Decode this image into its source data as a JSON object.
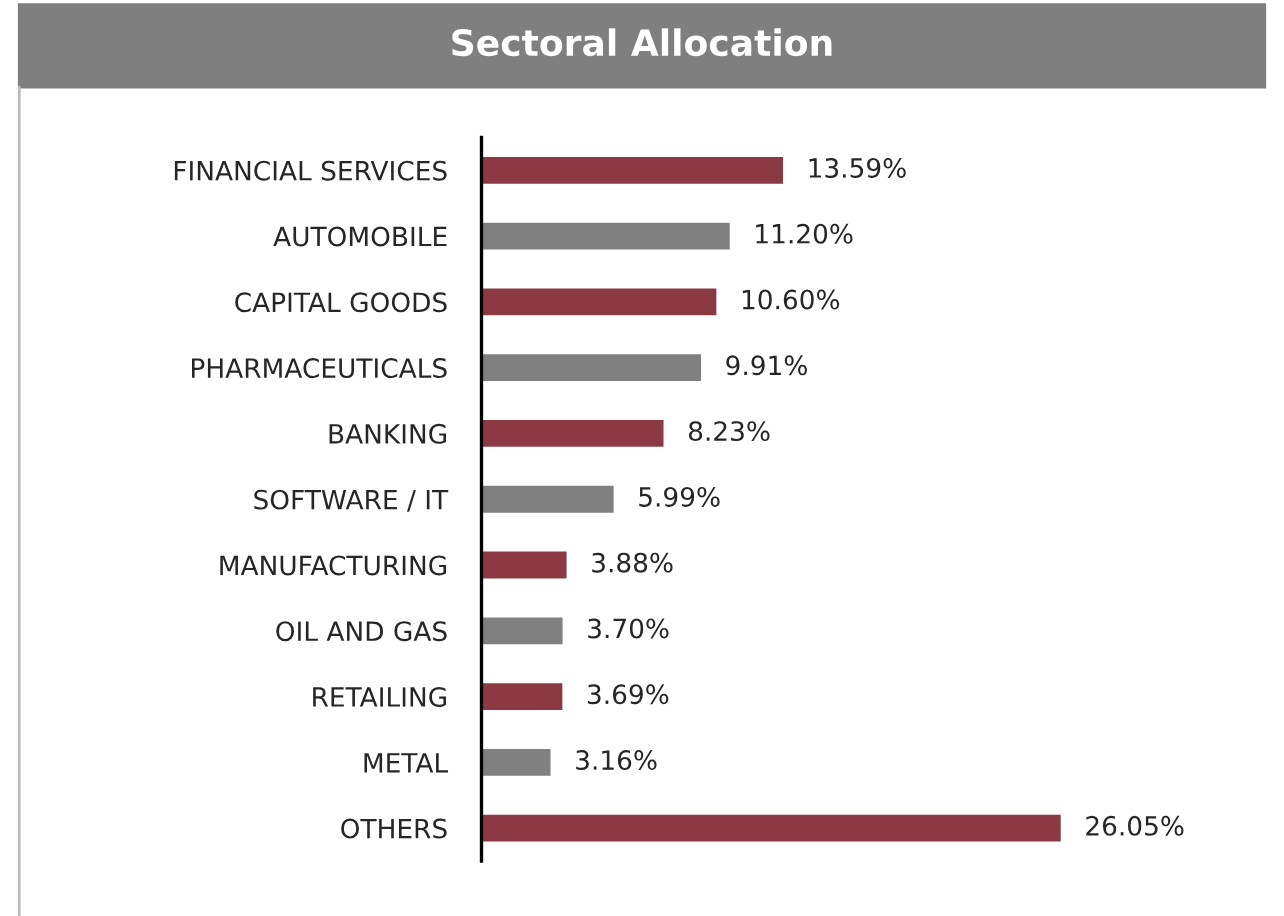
{
  "chart_data": {
    "type": "bar",
    "orientation": "horizontal",
    "title": "Sectoral Allocation",
    "categories": [
      "FINANCIAL SERVICES",
      "AUTOMOBILE",
      "CAPITAL GOODS",
      "PHARMACEUTICALS",
      "BANKING",
      "SOFTWARE / IT",
      "MANUFACTURING",
      "OIL AND GAS",
      "RETAILING",
      "METAL",
      "OTHERS"
    ],
    "values": [
      13.59,
      11.2,
      10.6,
      9.91,
      8.23,
      5.99,
      3.88,
      3.7,
      3.69,
      3.16,
      26.05
    ],
    "value_labels": [
      "13.59%",
      "11.20%",
      "10.60%",
      "9.91%",
      "8.23%",
      "5.99%",
      "3.88%",
      "3.70%",
      "3.69%",
      "3.16%",
      "26.05%"
    ],
    "colors": [
      "#8b3a44",
      "#808080",
      "#8b3a44",
      "#808080",
      "#8b3a44",
      "#808080",
      "#8b3a44",
      "#808080",
      "#8b3a44",
      "#808080",
      "#8b3a44"
    ]
  }
}
